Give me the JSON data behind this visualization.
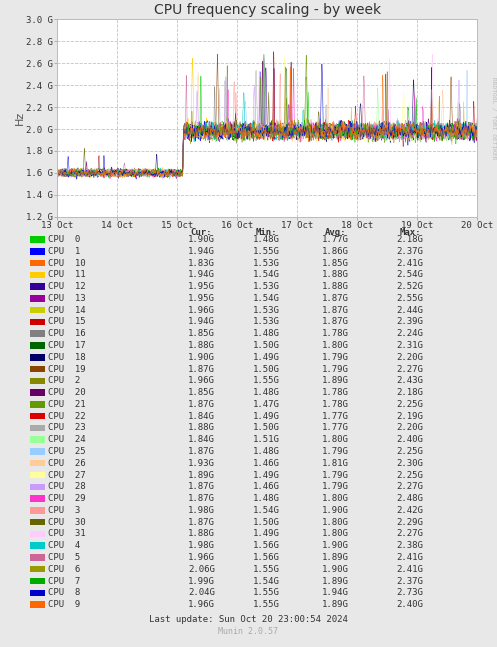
{
  "title": "CPU frequency scaling - by week",
  "ylabel": "Hz",
  "right_label": "RRDTOOL / TOBI OETIKER",
  "ylim": [
    1200000000.0,
    3000000000.0
  ],
  "yticks": [
    1200000000.0,
    1400000000.0,
    1600000000.0,
    1800000000.0,
    2000000000.0,
    2200000000.0,
    2400000000.0,
    2600000000.0,
    2800000000.0,
    3000000000.0
  ],
  "ytick_labels": [
    "1.2 G",
    "1.4 G",
    "1.6 G",
    "1.8 G",
    "2.0 G",
    "2.2 G",
    "2.4 G",
    "2.6 G",
    "2.8 G",
    "3.0 G"
  ],
  "xtick_labels": [
    "13 Oct",
    "14 Oct",
    "15 Oct",
    "16 Oct",
    "17 Oct",
    "18 Oct",
    "19 Oct",
    "20 Oct"
  ],
  "background_color": "#e8e8e8",
  "plot_bg_color": "#ffffff",
  "grid_color": "#ffaaaa",
  "title_color": "#333333",
  "cpus": [
    {
      "name": "CPU  0",
      "color": "#00cc00",
      "cur": "1.90G",
      "min": "1.48G",
      "avg": "1.77G",
      "max": "2.18G"
    },
    {
      "name": "CPU  1",
      "color": "#0000ff",
      "cur": "1.94G",
      "min": "1.55G",
      "avg": "1.86G",
      "max": "2.37G"
    },
    {
      "name": "CPU  10",
      "color": "#ff6600",
      "cur": "1.83G",
      "min": "1.53G",
      "avg": "1.85G",
      "max": "2.41G"
    },
    {
      "name": "CPU  11",
      "color": "#ffcc00",
      "cur": "1.94G",
      "min": "1.54G",
      "avg": "1.88G",
      "max": "2.54G"
    },
    {
      "name": "CPU  12",
      "color": "#330099",
      "cur": "1.95G",
      "min": "1.53G",
      "avg": "1.88G",
      "max": "2.52G"
    },
    {
      "name": "CPU  13",
      "color": "#990099",
      "cur": "1.95G",
      "min": "1.54G",
      "avg": "1.87G",
      "max": "2.55G"
    },
    {
      "name": "CPU  14",
      "color": "#cccc00",
      "cur": "1.96G",
      "min": "1.53G",
      "avg": "1.87G",
      "max": "2.44G"
    },
    {
      "name": "CPU  15",
      "color": "#cc0000",
      "cur": "1.94G",
      "min": "1.53G",
      "avg": "1.87G",
      "max": "2.39G"
    },
    {
      "name": "CPU  16",
      "color": "#808080",
      "cur": "1.85G",
      "min": "1.48G",
      "avg": "1.78G",
      "max": "2.24G"
    },
    {
      "name": "CPU  17",
      "color": "#006600",
      "cur": "1.88G",
      "min": "1.50G",
      "avg": "1.80G",
      "max": "2.31G"
    },
    {
      "name": "CPU  18",
      "color": "#000066",
      "cur": "1.90G",
      "min": "1.49G",
      "avg": "1.79G",
      "max": "2.20G"
    },
    {
      "name": "CPU  19",
      "color": "#884400",
      "cur": "1.87G",
      "min": "1.50G",
      "avg": "1.79G",
      "max": "2.27G"
    },
    {
      "name": "CPU  2",
      "color": "#888800",
      "cur": "1.96G",
      "min": "1.55G",
      "avg": "1.89G",
      "max": "2.43G"
    },
    {
      "name": "CPU  20",
      "color": "#660066",
      "cur": "1.85G",
      "min": "1.48G",
      "avg": "1.78G",
      "max": "2.18G"
    },
    {
      "name": "CPU  21",
      "color": "#669900",
      "cur": "1.87G",
      "min": "1.47G",
      "avg": "1.78G",
      "max": "2.25G"
    },
    {
      "name": "CPU  22",
      "color": "#dd0000",
      "cur": "1.84G",
      "min": "1.49G",
      "avg": "1.77G",
      "max": "2.19G"
    },
    {
      "name": "CPU  23",
      "color": "#aaaaaa",
      "cur": "1.88G",
      "min": "1.50G",
      "avg": "1.77G",
      "max": "2.20G"
    },
    {
      "name": "CPU  24",
      "color": "#99ff99",
      "cur": "1.84G",
      "min": "1.51G",
      "avg": "1.80G",
      "max": "2.40G"
    },
    {
      "name": "CPU  25",
      "color": "#99ccff",
      "cur": "1.87G",
      "min": "1.48G",
      "avg": "1.79G",
      "max": "2.25G"
    },
    {
      "name": "CPU  26",
      "color": "#ffcc99",
      "cur": "1.93G",
      "min": "1.46G",
      "avg": "1.81G",
      "max": "2.30G"
    },
    {
      "name": "CPU  27",
      "color": "#ffff99",
      "cur": "1.89G",
      "min": "1.49G",
      "avg": "1.79G",
      "max": "2.25G"
    },
    {
      "name": "CPU  28",
      "color": "#cc99ff",
      "cur": "1.87G",
      "min": "1.46G",
      "avg": "1.79G",
      "max": "2.27G"
    },
    {
      "name": "CPU  29",
      "color": "#ff33cc",
      "cur": "1.87G",
      "min": "1.48G",
      "avg": "1.80G",
      "max": "2.48G"
    },
    {
      "name": "CPU  3",
      "color": "#ff9999",
      "cur": "1.98G",
      "min": "1.54G",
      "avg": "1.90G",
      "max": "2.42G"
    },
    {
      "name": "CPU  30",
      "color": "#666600",
      "cur": "1.87G",
      "min": "1.50G",
      "avg": "1.80G",
      "max": "2.29G"
    },
    {
      "name": "CPU  31",
      "color": "#ffccff",
      "cur": "1.88G",
      "min": "1.49G",
      "avg": "1.80G",
      "max": "2.27G"
    },
    {
      "name": "CPU  4",
      "color": "#00cccc",
      "cur": "1.98G",
      "min": "1.56G",
      "avg": "1.90G",
      "max": "2.38G"
    },
    {
      "name": "CPU  5",
      "color": "#cc6699",
      "cur": "1.96G",
      "min": "1.56G",
      "avg": "1.89G",
      "max": "2.41G"
    },
    {
      "name": "CPU  6",
      "color": "#999900",
      "cur": "2.06G",
      "min": "1.55G",
      "avg": "1.90G",
      "max": "2.41G"
    },
    {
      "name": "CPU  7",
      "color": "#00aa00",
      "cur": "1.99G",
      "min": "1.54G",
      "avg": "1.89G",
      "max": "2.37G"
    },
    {
      "name": "CPU  8",
      "color": "#0000cc",
      "cur": "2.04G",
      "min": "1.55G",
      "avg": "1.94G",
      "max": "2.73G"
    },
    {
      "name": "CPU  9",
      "color": "#ff6600",
      "cur": "1.96G",
      "min": "1.55G",
      "avg": "1.89G",
      "max": "2.40G"
    }
  ],
  "footer": "Last update: Sun Oct 20 23:00:54 2024",
  "munin_version": "Munin 2.0.57"
}
